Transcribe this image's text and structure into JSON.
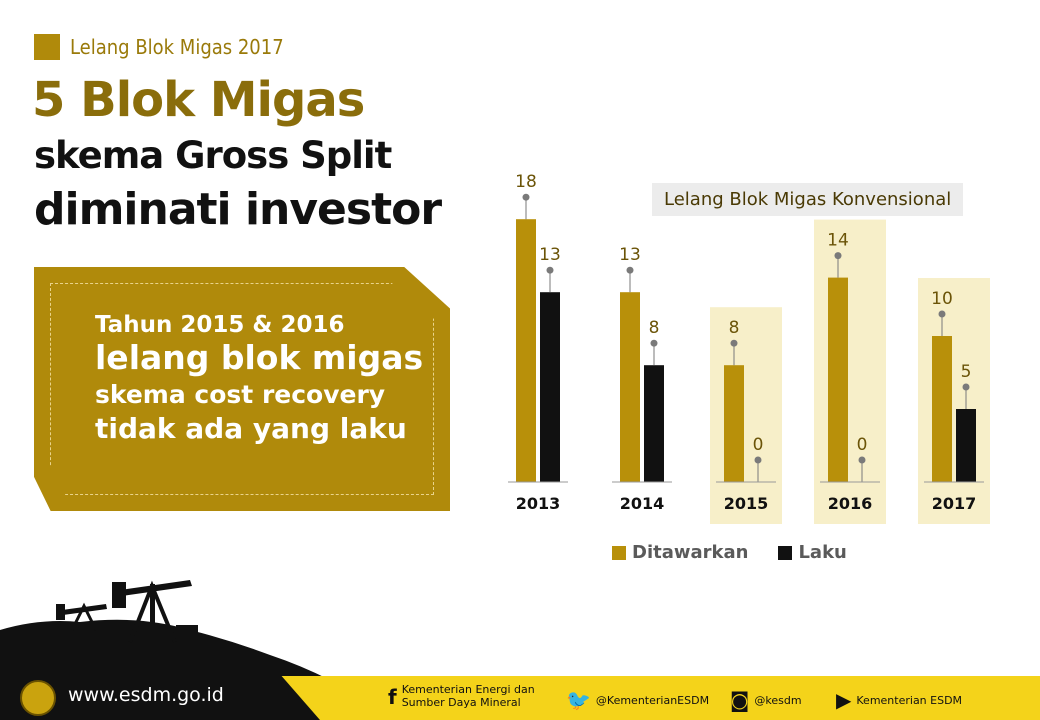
{
  "header": {
    "tag": "Lelang Blok Migas 2017",
    "line1": "5 Blok Migas",
    "line2": "skema Gross Split",
    "line3": "diminati investor"
  },
  "promo": {
    "line1": "Tahun 2015 & 2016",
    "line2": "lelang blok migas",
    "line3": "skema cost recovery",
    "line4": "tidak ada yang laku"
  },
  "chart_data": {
    "type": "bar",
    "title": "Lelang Blok Migas Konvensional",
    "categories": [
      "2013",
      "2014",
      "2015",
      "2016",
      "2017"
    ],
    "series": [
      {
        "name": "Ditawarkan",
        "values": [
          18,
          13,
          8,
          14,
          10
        ],
        "color": "#b8900a"
      },
      {
        "name": "Laku",
        "values": [
          13,
          8,
          0,
          0,
          5
        ],
        "color": "#111111"
      }
    ],
    "highlighted_categories": [
      "2015",
      "2016",
      "2017"
    ],
    "legend_position": "bottom",
    "grid": false
  },
  "footer": {
    "url": "www.esdm.go.id",
    "ministry_line1": "Kementerian Energi dan",
    "ministry_line2": "Sumber Daya Mineral",
    "twitter": "@KementerianESDM",
    "instagram": "@kesdm",
    "youtube": "Kementerian ESDM",
    "icons": [
      "facebook-icon",
      "twitter-icon",
      "instagram-icon",
      "youtube-icon"
    ]
  }
}
